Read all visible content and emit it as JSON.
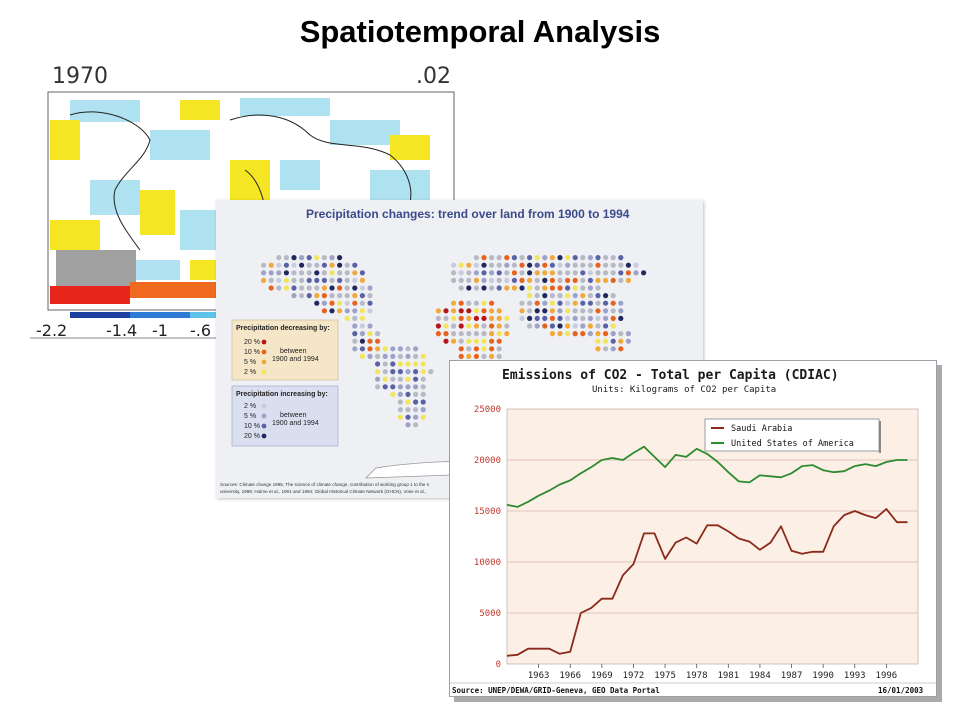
{
  "slide": {
    "title": "Spatiotemporal Analysis"
  },
  "temperature_map": {
    "year": "1970",
    "value": ".02",
    "colorbar_labels": [
      "-2.2",
      "-1.4",
      "-1",
      "-.6"
    ],
    "colors": {
      "cold": "#9fdcef",
      "warm": "#f5e623",
      "hot": "#e8251b",
      "mask": "#a0a0a0"
    }
  },
  "precip_map": {
    "title": "Precipitation changes: trend over land from 1900 to 1994",
    "legend_decreasing_title": "Precipitation decreasing by:",
    "legend_increasing_title": "Precipitation increasing by:",
    "decreasing_levels": [
      "20 %",
      "10 %",
      "5 %",
      "2 %"
    ],
    "increasing_levels": [
      "2 %",
      "5 %",
      "10 %",
      "20 %"
    ],
    "between_label": "between",
    "period_label": "1900 and 1994",
    "source": "Sources: Climate change 1995, The science of climate change, contribution of working group 1 to the s",
    "source_line2": "university, 1998; Hulme et al., 1991 and 1994; Global Historical Climate Network (GHCN), Vose et al.,",
    "colors": {
      "dec20": "#b8141a",
      "dec10": "#e8621e",
      "dec5": "#f0a93a",
      "dec2": "#f3e55a",
      "inc2": "#c9cce0",
      "inc5": "#9da2c8",
      "inc10": "#5a62a6",
      "inc20": "#20285e",
      "neutral": "#b7b9c4"
    }
  },
  "co2_chart": {
    "title": "Emissions of CO2 - Total per Capita (CDIAC)",
    "units": "Units: Kilograms of CO2 per Capita",
    "source": "Source: UNEP/DEWA/GRID-Geneva, GEO Data Portal",
    "date": "16/01/2003",
    "colors": {
      "saudi": "#8b2a1a",
      "usa": "#2e8b2e",
      "plot_bg": "#fcefe6",
      "grid": "#d9b9a9"
    }
  },
  "chart_data": {
    "type": "line",
    "title": "Emissions of CO2 - Total per Capita (CDIAC)",
    "subtitle": "Units: Kilograms of CO2 per Capita",
    "xlabel": "",
    "ylabel": "",
    "ylim": [
      0,
      25000
    ],
    "xlim": [
      1960,
      1999
    ],
    "y_ticks": [
      0,
      5000,
      10000,
      15000,
      20000,
      25000
    ],
    "x_ticks": [
      1963,
      1966,
      1969,
      1972,
      1975,
      1978,
      1981,
      1984,
      1987,
      1990,
      1993,
      1996
    ],
    "legend_position": "top-right",
    "x": [
      1960,
      1961,
      1962,
      1963,
      1964,
      1965,
      1966,
      1967,
      1968,
      1969,
      1970,
      1971,
      1972,
      1973,
      1974,
      1975,
      1976,
      1977,
      1978,
      1979,
      1980,
      1981,
      1982,
      1983,
      1984,
      1985,
      1986,
      1987,
      1988,
      1989,
      1990,
      1991,
      1992,
      1993,
      1994,
      1995,
      1996,
      1997,
      1998
    ],
    "series": [
      {
        "name": "Saudi Arabia",
        "values": [
          800,
          900,
          1500,
          1500,
          1500,
          1000,
          1200,
          5000,
          5500,
          6400,
          6400,
          8700,
          9800,
          12800,
          12800,
          10300,
          11900,
          12400,
          11800,
          13600,
          13600,
          13000,
          12300,
          12000,
          11200,
          11900,
          13500,
          11100,
          10800,
          11000,
          11000,
          13500,
          14600,
          15000,
          14600,
          14300,
          15200,
          13900,
          13900
        ]
      },
      {
        "name": "United States of America",
        "values": [
          15600,
          15400,
          15900,
          16500,
          17000,
          17600,
          18000,
          18700,
          19300,
          20000,
          20200,
          20000,
          20700,
          21300,
          20300,
          19300,
          20500,
          20300,
          21100,
          20600,
          19800,
          18800,
          17900,
          17800,
          18500,
          18400,
          18300,
          18700,
          19400,
          19500,
          19000,
          18800,
          18900,
          19400,
          19600,
          19400,
          19800,
          20000,
          20000
        ]
      }
    ]
  }
}
